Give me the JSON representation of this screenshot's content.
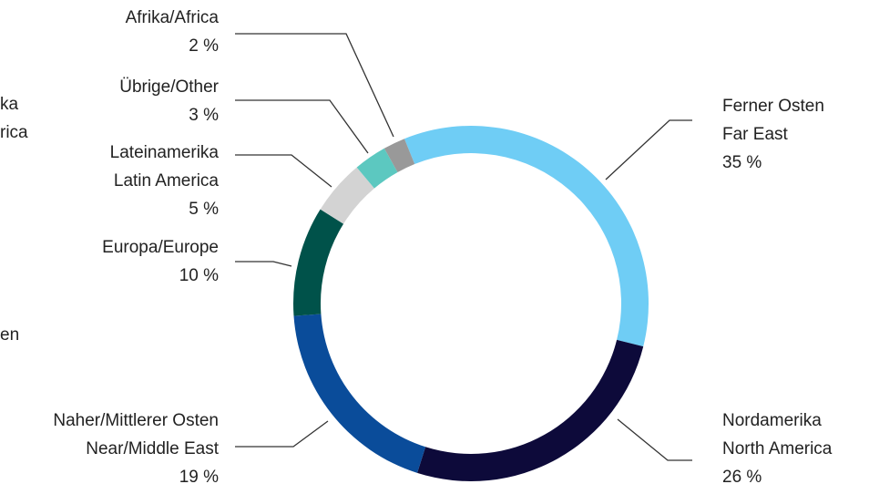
{
  "chart_data": {
    "type": "donut",
    "categories": [
      [
        "Ferner Osten",
        "Far East"
      ],
      [
        "Nordamerika",
        "North America"
      ],
      [
        "Naher/Mittlerer Osten",
        "Near/Middle East"
      ],
      [
        "Europa/Europe"
      ],
      [
        "Lateinamerika",
        "Latin America"
      ],
      [
        "Übrige/Other"
      ],
      [
        "Afrika/Africa"
      ]
    ],
    "values": [
      35,
      26,
      19,
      10,
      5,
      3,
      2
    ],
    "value_labels": [
      "35 %",
      "26 %",
      "19 %",
      "10 %",
      "5 %",
      "3 %",
      "2 %"
    ],
    "colors": [
      "#6fcdf5",
      "#0d0a3a",
      "#0a4c9a",
      "#00524a",
      "#d3d3d3",
      "#5cc8c0",
      "#999999"
    ],
    "cropped_texts": [
      "ka",
      "rica",
      "en"
    ]
  }
}
